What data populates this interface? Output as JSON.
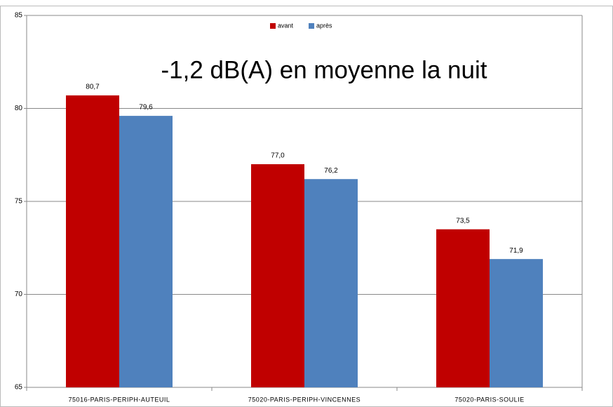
{
  "chart_data": {
    "type": "bar",
    "annotation": "-1,2 dB(A) en moyenne la nuit",
    "categories": [
      "75016-PARIS-PERIPH-AUTEUIL",
      "75020-PARIS-PERIPH-VINCENNES",
      "75020-PARIS-SOULIE"
    ],
    "series": [
      {
        "name": "avant",
        "color": "#c00000",
        "values": [
          80.7,
          77.0,
          73.5
        ],
        "value_labels": [
          "80,7",
          "77,0",
          "73,5"
        ]
      },
      {
        "name": "après",
        "color": "#4f81bd",
        "values": [
          79.6,
          76.2,
          71.9
        ],
        "value_labels": [
          "79,6",
          "76,2",
          "71,9"
        ]
      }
    ],
    "ylim": [
      65,
      85
    ],
    "yticks": [
      65,
      70,
      75,
      80,
      85
    ],
    "grid": true,
    "legend": "top"
  }
}
